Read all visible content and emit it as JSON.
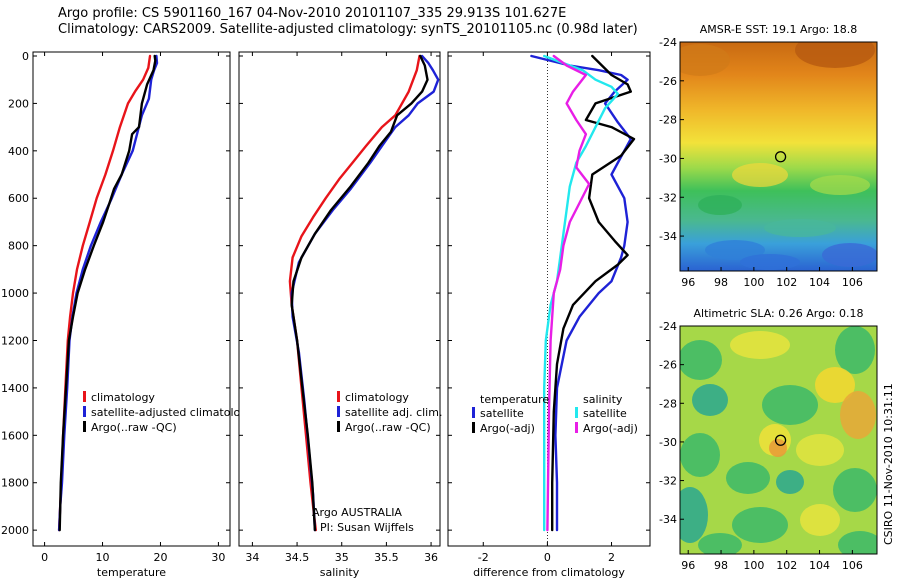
{
  "header": {
    "line1": "Argo profile: CS 5901160_167 04-Nov-2010 20101107_335 29.913S 101.627E",
    "line2": "Climatology: CARS2009. Satellite-adjusted climatology: synTS_20101105.nc (0.98d later)"
  },
  "side_label": "CSIRO 11-Nov-2010 10:31:11",
  "credit": {
    "line1": "Argo AUSTRALIA",
    "line2": "PI: Susan Wijffels"
  },
  "colors": {
    "red": "#e8141a",
    "blue": "#1e22d6",
    "black": "#000000",
    "cyan": "#22e8ee",
    "magenta": "#e81ee6"
  },
  "chart_data": [
    {
      "type": "line",
      "xlabel": "temperature",
      "xticks": [
        0,
        10,
        20,
        30
      ],
      "xlim": [
        -2,
        32
      ],
      "ylim": [
        0,
        2050
      ],
      "yticks": [
        0,
        200,
        400,
        600,
        800,
        1000,
        1200,
        1400,
        1600,
        1800,
        2000
      ],
      "y_reversed": true,
      "legend": [
        "climatology",
        "satellite-adjusted climatolog",
        "Argo(..raw -QC)"
      ],
      "series": [
        {
          "name": "climatology",
          "color": "red",
          "x": [
            18.2,
            17.9,
            17.0,
            15.6,
            14.4,
            13.0,
            11.8,
            10.5,
            9.0,
            7.8,
            6.6,
            5.6,
            4.9,
            4.4,
            4.0,
            3.6,
            3.2,
            2.9,
            2.7,
            2.5
          ],
          "y": [
            0,
            50,
            100,
            150,
            200,
            300,
            400,
            500,
            600,
            700,
            800,
            900,
            1000,
            1100,
            1200,
            1400,
            1600,
            1800,
            1900,
            2000
          ]
        },
        {
          "name": "satellite-adjusted climatolog",
          "color": "blue",
          "x": [
            19.3,
            19.4,
            18.9,
            18.4,
            18.0,
            16.8,
            15.2,
            13.3,
            11.6,
            9.7,
            8.0,
            6.6,
            5.5,
            4.8,
            4.3,
            3.9,
            3.4,
            3.0,
            2.7,
            2.5
          ],
          "y": [
            0,
            30,
            60,
            100,
            180,
            250,
            400,
            500,
            600,
            700,
            800,
            900,
            1000,
            1100,
            1200,
            1400,
            1600,
            1800,
            1900,
            2000
          ]
        },
        {
          "name": "Argo(..raw -QC)",
          "color": "black",
          "x": [
            19.0,
            19.1,
            18.8,
            17.7,
            16.8,
            16.3,
            15.1,
            14.6,
            13.3,
            12.0,
            11.2,
            10.1,
            8.5,
            7.0,
            5.7,
            4.9,
            4.2,
            3.7,
            3.2,
            2.8,
            2.6
          ],
          "y": [
            0,
            20,
            60,
            120,
            200,
            300,
            330,
            400,
            500,
            560,
            620,
            700,
            800,
            900,
            1000,
            1100,
            1200,
            1400,
            1600,
            1800,
            2000
          ]
        }
      ]
    },
    {
      "type": "line",
      "xlabel": "salinity",
      "xticks": [
        34,
        34.5,
        35,
        35.5,
        36
      ],
      "xlim": [
        33.85,
        36.1
      ],
      "ylim": [
        0,
        2050
      ],
      "y_reversed": true,
      "legend": [
        "climatology",
        "satellite adj. clim.",
        "Argo(..raw -QC)"
      ],
      "series": [
        {
          "name": "climatology",
          "color": "red",
          "x": [
            35.87,
            35.84,
            35.75,
            35.6,
            35.45,
            35.27,
            35.12,
            34.97,
            34.82,
            34.68,
            34.55,
            34.45,
            34.42,
            34.44,
            34.5,
            34.55,
            34.6,
            34.65,
            34.68,
            34.71
          ],
          "y": [
            0,
            60,
            150,
            250,
            300,
            380,
            450,
            520,
            600,
            680,
            760,
            850,
            950,
            1050,
            1200,
            1400,
            1600,
            1800,
            1900,
            2000
          ]
        },
        {
          "name": "satellite adj. clim.",
          "color": "blue",
          "x": [
            35.9,
            35.97,
            36.02,
            36.08,
            36.03,
            35.85,
            35.75,
            35.6,
            35.45,
            35.32,
            35.1,
            34.9,
            34.7,
            34.52,
            34.44,
            34.45,
            34.52,
            34.58,
            34.63,
            34.68,
            34.7
          ],
          "y": [
            0,
            30,
            60,
            100,
            150,
            200,
            250,
            300,
            380,
            450,
            560,
            650,
            750,
            870,
            1000,
            1100,
            1250,
            1450,
            1650,
            1850,
            2000
          ]
        },
        {
          "name": "Argo(..raw -QC)",
          "color": "black",
          "x": [
            35.88,
            35.93,
            35.96,
            35.9,
            35.78,
            35.62,
            35.55,
            35.42,
            35.3,
            35.1,
            34.88,
            34.7,
            34.55,
            34.46,
            34.44,
            34.5,
            34.56,
            34.62,
            34.67,
            34.7
          ],
          "y": [
            0,
            40,
            100,
            150,
            200,
            250,
            320,
            380,
            450,
            550,
            650,
            750,
            850,
            950,
            1050,
            1200,
            1400,
            1600,
            1800,
            2000
          ]
        }
      ]
    },
    {
      "type": "line",
      "xlabel": "difference from climatology",
      "xticks": [
        -2,
        0,
        2
      ],
      "xlim": [
        -3.1,
        3.2
      ],
      "ylim": [
        0,
        2050
      ],
      "y_reversed": true,
      "legend_left": {
        "heading": "temperature",
        "items": [
          "satellite",
          "Argo(-adj)"
        ]
      },
      "legend_right": {
        "heading": "salinity",
        "items": [
          "satellite",
          "Argo(-adj)"
        ]
      },
      "series": [
        {
          "name": "satellite",
          "group": "temperature",
          "color": "blue",
          "x": [
            -0.5,
            0.7,
            1.6,
            2.3,
            2.5,
            2.1,
            1.8,
            2.2,
            2.6,
            2.4,
            2.0,
            2.4,
            2.5,
            2.4,
            2.3,
            2.0,
            1.6,
            1.0,
            0.6,
            0.3,
            0.25,
            0.3,
            0.3
          ],
          "y": [
            0,
            40,
            60,
            80,
            100,
            150,
            200,
            280,
            350,
            400,
            500,
            600,
            700,
            800,
            850,
            950,
            1000,
            1100,
            1200,
            1400,
            1600,
            1800,
            2000
          ]
        },
        {
          "name": "Argo(-adj)",
          "group": "temperature",
          "color": "black",
          "x": [
            1.4,
            1.7,
            2.0,
            2.5,
            2.6,
            1.5,
            1.2,
            2.0,
            2.7,
            2.3,
            1.4,
            1.3,
            1.6,
            2.1,
            2.5,
            2.2,
            1.5,
            0.8,
            0.5,
            0.3,
            0.2,
            0.15,
            0.15
          ],
          "y": [
            0,
            40,
            80,
            120,
            150,
            200,
            270,
            300,
            350,
            420,
            500,
            600,
            700,
            780,
            840,
            880,
            950,
            1050,
            1150,
            1300,
            1500,
            1800,
            2000
          ]
        },
        {
          "name": "satellite",
          "group": "salinity",
          "color": "cyan",
          "x": [
            -0.1,
            0.5,
            1.1,
            1.5,
            2.0,
            2.2,
            1.8,
            1.5,
            1.2,
            0.9,
            0.7,
            0.6,
            0.5,
            0.4,
            0.3,
            0.1,
            -0.05,
            -0.1,
            -0.1,
            -0.1,
            -0.1
          ],
          "y": [
            0,
            30,
            60,
            100,
            130,
            160,
            220,
            300,
            380,
            450,
            550,
            650,
            750,
            850,
            950,
            1050,
            1200,
            1400,
            1600,
            1800,
            2000
          ]
        },
        {
          "name": "Argo(-adj)",
          "group": "salinity",
          "color": "magenta",
          "x": [
            0.2,
            0.6,
            1.2,
            0.8,
            0.6,
            0.9,
            1.2,
            1.0,
            0.9,
            1.3,
            1.0,
            0.7,
            0.5,
            0.4,
            0.2,
            0.1,
            0.05,
            0.0
          ],
          "y": [
            0,
            40,
            80,
            150,
            200,
            270,
            330,
            400,
            470,
            540,
            620,
            700,
            800,
            900,
            1000,
            1200,
            1500,
            2000
          ]
        }
      ]
    },
    {
      "type": "heatmap",
      "title": "AMSR-E SST: 19.1 Argo: 18.8",
      "xticks": [
        96,
        98,
        100,
        102,
        104,
        106
      ],
      "xlim": [
        95.5,
        107.5
      ],
      "yticks": [
        -24,
        -26,
        -28,
        -30,
        -32,
        -34
      ],
      "ylim": [
        -35.8,
        -24
      ],
      "marker": {
        "lon": 101.627,
        "lat": -29.913
      }
    },
    {
      "type": "heatmap",
      "title": "Altimetric SLA: 0.26 Argo: 0.18",
      "xticks": [
        96,
        98,
        100,
        102,
        104,
        106
      ],
      "xlim": [
        95.5,
        107.5
      ],
      "yticks": [
        -24,
        -26,
        -28,
        -30,
        -32,
        -34
      ],
      "ylim": [
        -35.8,
        -24
      ],
      "marker": {
        "lon": 101.627,
        "lat": -29.913
      }
    }
  ]
}
